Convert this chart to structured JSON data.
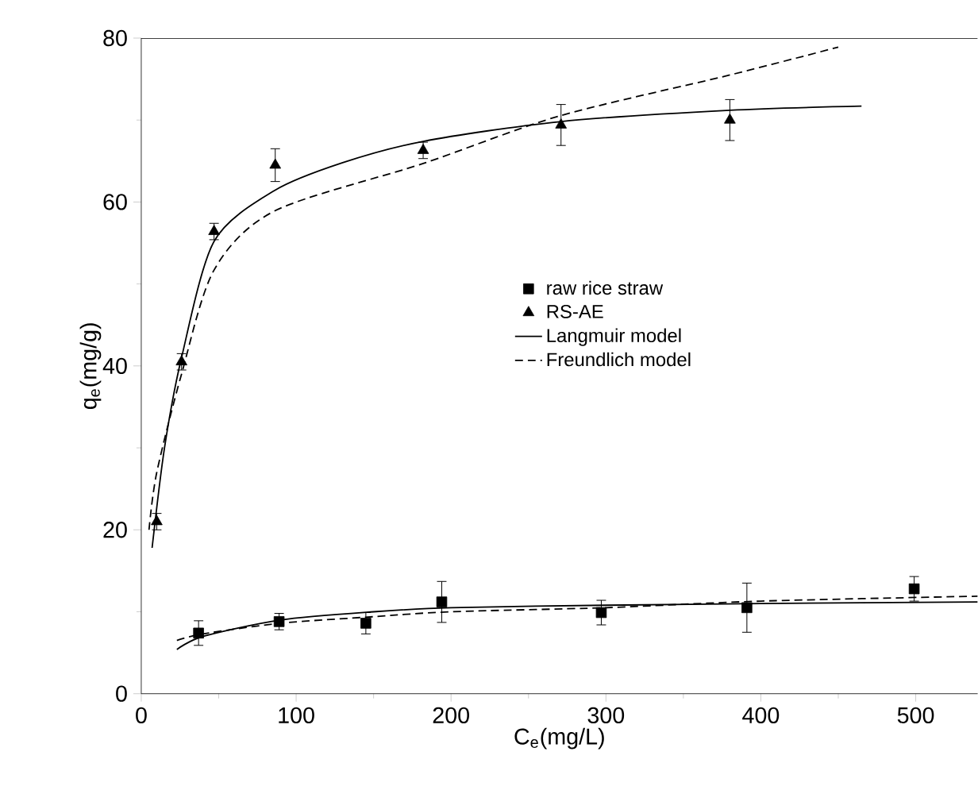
{
  "chart_data": {
    "type": "scatter",
    "xlabel": "C$_{e}$(mg/L)",
    "ylabel": "q$_{e}$(mg/g)",
    "xlim": [
      0,
      540
    ],
    "ylim": [
      0,
      80
    ],
    "xticks": [
      0,
      100,
      200,
      300,
      400,
      500
    ],
    "yticks": [
      0,
      20,
      40,
      60,
      80
    ],
    "grid": false,
    "legend": "center right",
    "series": [
      {
        "name": "raw rice straw",
        "marker": "square",
        "color": "#000000",
        "x": [
          37,
          89,
          145,
          194,
          297,
          391,
          499
        ],
        "values": [
          7.4,
          8.8,
          8.6,
          11.2,
          9.9,
          10.5,
          12.8
        ],
        "errors": [
          1.5,
          1,
          1.3,
          2.5,
          1.5,
          3,
          1.5
        ]
      },
      {
        "name": "RS-AE",
        "marker": "triangle",
        "color": "#000000",
        "x": [
          10,
          26,
          47,
          86.5,
          182,
          271,
          380
        ],
        "values": [
          21,
          40.5,
          56.4,
          64.5,
          66.3,
          69.4,
          70
        ],
        "errors": [
          1,
          1,
          1,
          2,
          1,
          2.5,
          2.5
        ]
      },
      {
        "name": "Langmuir model",
        "type": "line",
        "line_style": "solid",
        "marker": "none",
        "color": "#000000",
        "x": [
          7,
          15,
          26,
          47,
          86,
          130,
          182,
          270,
          380,
          465
        ],
        "values": [
          17.8,
          30,
          41,
          55.2,
          61.4,
          64.8,
          67.4,
          69.8,
          71.2,
          71.7
        ]
      },
      {
        "name": "Freundlich model",
        "type": "line",
        "line_style": "dashed",
        "marker": "none",
        "color": "#000000",
        "x": [
          5,
          10,
          26,
          47,
          86,
          182,
          270,
          380,
          450
        ],
        "values": [
          20,
          27,
          39,
          51.7,
          58.9,
          64.7,
          70.5,
          75.5,
          78.9
        ]
      },
      {
        "type": "line",
        "line_style": "solid",
        "marker": "none",
        "color": "#000000",
        "x": [
          23,
          40,
          90,
          150,
          200,
          300,
          400,
          540
        ],
        "values": [
          5.4,
          7,
          9,
          10,
          10.5,
          10.8,
          11,
          11.2
        ]
      },
      {
        "type": "line",
        "line_style": "dashed",
        "marker": "none",
        "color": "#000000",
        "x": [
          23,
          40,
          90,
          150,
          200,
          300,
          400,
          540
        ],
        "values": [
          6.5,
          7.3,
          8.6,
          9.4,
          10,
          10.5,
          11.3,
          11.9
        ]
      }
    ]
  }
}
